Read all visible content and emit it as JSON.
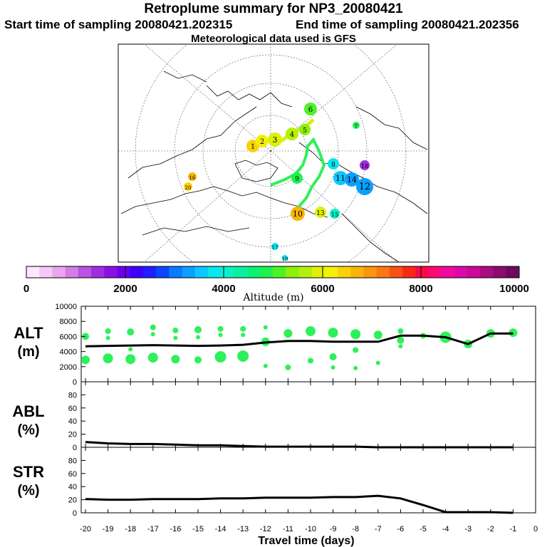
{
  "header": {
    "title": "Retroplume summary for NP3_20080421",
    "start": "Start time of sampling 20080421.202315",
    "end": "End time of sampling 20080421.202356",
    "met": "Meteorological data used is GFS"
  },
  "colorbar": {
    "label": "Altitude (m)",
    "ticks": [
      "0",
      "2000",
      "4000",
      "6000",
      "8000",
      "10000"
    ],
    "colors": [
      "#ffe6ff",
      "#f5c8f5",
      "#e8a6ee",
      "#d27ee6",
      "#bb52e0",
      "#a02ee0",
      "#8a10e6",
      "#6a00ee",
      "#3c00ff",
      "#1e1eff",
      "#0a46ff",
      "#0a78ff",
      "#0aa0ff",
      "#0ac8ff",
      "#0ae6f0",
      "#0af0c8",
      "#0af0a0",
      "#0af078",
      "#1ef050",
      "#50f028",
      "#8cf00a",
      "#b4f00a",
      "#dcf00a",
      "#f5f00a",
      "#fad20a",
      "#fab40a",
      "#fa960a",
      "#fa7814",
      "#fa5014",
      "#fa2814",
      "#fa0a46",
      "#fa0a78",
      "#f00aa0",
      "#dc0aaa",
      "#c80a96",
      "#aa0a82",
      "#8c0a6e",
      "#6e0a5a"
    ]
  },
  "map": {
    "labels": [
      "1",
      "2",
      "3",
      "4",
      "5",
      "6",
      "7",
      "8",
      "9",
      "10",
      "11",
      "12",
      "13",
      "14",
      "15",
      "16",
      "17",
      "18",
      "19",
      "20"
    ]
  },
  "chart_data": [
    {
      "name": "ALT",
      "type": "line",
      "ylabel_top": "ALT",
      "ylabel_bottom": "(m)",
      "ylim": [
        0,
        10000
      ],
      "yticks": [
        "0",
        "2000",
        "4000",
        "6000",
        "8000",
        "10000"
      ],
      "x": [
        -20,
        -19,
        -18,
        -17,
        -16,
        -15,
        -14,
        -13,
        -12,
        -11,
        -10,
        -9,
        -8,
        -7,
        -6,
        -5,
        -4,
        -3,
        -2,
        -1
      ],
      "values": [
        4700,
        4750,
        4800,
        4850,
        4800,
        4750,
        4800,
        4900,
        5200,
        5400,
        5400,
        5300,
        5300,
        5300,
        6100,
        6100,
        5900,
        5000,
        6400,
        6400
      ]
    },
    {
      "name": "ABL",
      "type": "line",
      "ylabel_top": "ABL",
      "ylabel_bottom": "(%)",
      "ylim": [
        0,
        100
      ],
      "yticks": [
        "0",
        "20",
        "40",
        "60",
        "80"
      ],
      "x": [
        -20,
        -19,
        -18,
        -17,
        -16,
        -15,
        -14,
        -13,
        -12,
        -11,
        -10,
        -9,
        -8,
        -7,
        -6,
        -5,
        -4,
        -3,
        -2,
        -1
      ],
      "values": [
        8,
        6,
        5,
        5,
        4,
        3,
        3,
        2,
        1,
        1,
        1,
        1,
        1,
        0,
        0,
        0,
        0,
        0,
        0,
        0
      ]
    },
    {
      "name": "STR",
      "type": "line",
      "ylabel_top": "STR",
      "ylabel_bottom": "(%)",
      "ylim": [
        0,
        100
      ],
      "yticks": [
        "0",
        "20",
        "40",
        "60",
        "80"
      ],
      "x": [
        -20,
        -19,
        -18,
        -17,
        -16,
        -15,
        -14,
        -13,
        -12,
        -11,
        -10,
        -9,
        -8,
        -7,
        -6,
        -5,
        -4,
        -3,
        -2,
        -1
      ],
      "values": [
        21,
        20,
        20,
        21,
        21,
        21,
        22,
        22,
        23,
        23,
        23,
        24,
        24,
        26,
        22,
        12,
        1,
        1,
        1,
        0
      ],
      "xlabel": "Travel time (days)",
      "xticks": [
        "-20",
        "-19",
        "-18",
        "-17",
        "-16",
        "-15",
        "-14",
        "-13",
        "-12",
        "-11",
        "-10",
        "-9",
        "-8",
        "-7",
        "-6",
        "-5",
        "-4",
        "-3",
        "-2",
        "-1",
        "0"
      ]
    }
  ]
}
